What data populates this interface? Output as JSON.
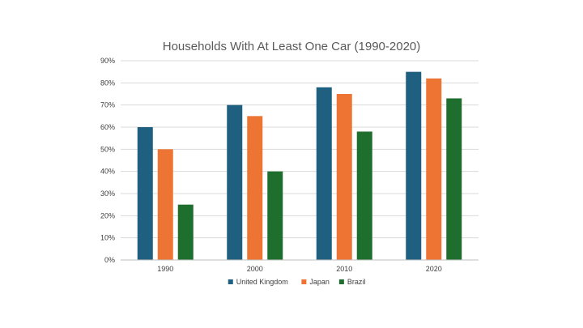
{
  "chart_data": {
    "type": "bar",
    "title": "Households With At Least One Car (1990-2020)",
    "categories": [
      "1990",
      "2000",
      "2010",
      "2020"
    ],
    "series": [
      {
        "name": "United Kingdom",
        "color": "#1f5f7f",
        "values": [
          60,
          70,
          78,
          85
        ]
      },
      {
        "name": "Japan",
        "color": "#ed7433",
        "values": [
          50,
          65,
          75,
          82
        ]
      },
      {
        "name": "Brazil",
        "color": "#1e6e2e",
        "values": [
          25,
          40,
          58,
          73
        ]
      }
    ],
    "yticks": [
      "0%",
      "10%",
      "20%",
      "30%",
      "40%",
      "50%",
      "60%",
      "70%",
      "80%",
      "90%"
    ],
    "ylim": [
      0,
      90
    ],
    "grid": true,
    "legend_position": "bottom"
  }
}
